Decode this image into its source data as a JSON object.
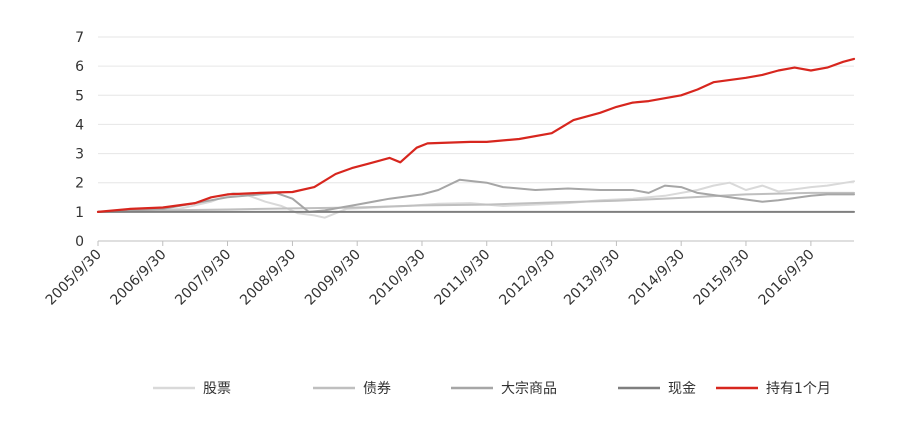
{
  "chart_data": {
    "type": "line",
    "title": "",
    "xlabel": "",
    "ylabel": "",
    "ylim": [
      0,
      7
    ],
    "yticks": [
      0,
      1,
      2,
      3,
      4,
      5,
      6,
      7
    ],
    "xlim": [
      "2005/9/30",
      "2017/5/31"
    ],
    "xticks": [
      "2005/9/30",
      "2006/9/30",
      "2007/9/30",
      "2008/9/30",
      "2009/9/30",
      "2010/9/30",
      "2011/9/30",
      "2012/9/30",
      "2013/9/30",
      "2014/9/30",
      "2015/9/30",
      "2016/9/30"
    ],
    "grid": "horizontal",
    "legend_position": "bottom",
    "series": [
      {
        "name": "股票",
        "color": "#d9d9d9",
        "points": [
          [
            "2005/9/30",
            1.0
          ],
          [
            "2006/1/31",
            1.0
          ],
          [
            "2006/6/30",
            1.03
          ],
          [
            "2006/12/31",
            1.1
          ],
          [
            "2007/6/30",
            1.35
          ],
          [
            "2007/10/31",
            1.65
          ],
          [
            "2008/1/31",
            1.55
          ],
          [
            "2008/4/30",
            1.35
          ],
          [
            "2008/7/31",
            1.2
          ],
          [
            "2008/10/31",
            0.95
          ],
          [
            "2009/1/31",
            0.88
          ],
          [
            "2009/3/31",
            0.8
          ],
          [
            "2009/7/31",
            1.1
          ],
          [
            "2009/12/31",
            1.15
          ],
          [
            "2010/6/30",
            1.2
          ],
          [
            "2010/12/31",
            1.28
          ],
          [
            "2011/6/30",
            1.3
          ],
          [
            "2011/12/31",
            1.2
          ],
          [
            "2012/6/30",
            1.25
          ],
          [
            "2012/12/31",
            1.3
          ],
          [
            "2013/6/30",
            1.4
          ],
          [
            "2013/12/31",
            1.45
          ],
          [
            "2014/6/30",
            1.55
          ],
          [
            "2014/12/31",
            1.75
          ],
          [
            "2015/3/31",
            1.9
          ],
          [
            "2015/6/30",
            2.0
          ],
          [
            "2015/9/30",
            1.75
          ],
          [
            "2015/12/31",
            1.9
          ],
          [
            "2016/3/31",
            1.7
          ],
          [
            "2016/9/30",
            1.85
          ],
          [
            "2016/12/31",
            1.9
          ],
          [
            "2017/5/31",
            2.05
          ]
        ]
      },
      {
        "name": "债券",
        "color": "#bfbfbf",
        "points": [
          [
            "2005/9/30",
            1.0
          ],
          [
            "2006/9/30",
            1.05
          ],
          [
            "2007/9/30",
            1.08
          ],
          [
            "2008/9/30",
            1.12
          ],
          [
            "2009/9/30",
            1.15
          ],
          [
            "2010/9/30",
            1.22
          ],
          [
            "2011/9/30",
            1.25
          ],
          [
            "2012/9/30",
            1.32
          ],
          [
            "2013/9/30",
            1.38
          ],
          [
            "2014/9/30",
            1.48
          ],
          [
            "2015/9/30",
            1.6
          ],
          [
            "2016/9/30",
            1.65
          ],
          [
            "2017/5/31",
            1.65
          ]
        ]
      },
      {
        "name": "大宗商品",
        "color": "#a6a6a6",
        "points": [
          [
            "2005/9/30",
            1.0
          ],
          [
            "2006/3/31",
            1.05
          ],
          [
            "2006/9/30",
            1.1
          ],
          [
            "2007/3/31",
            1.3
          ],
          [
            "2007/9/30",
            1.5
          ],
          [
            "2008/3/31",
            1.6
          ],
          [
            "2008/6/30",
            1.65
          ],
          [
            "2008/9/30",
            1.45
          ],
          [
            "2008/12/31",
            1.0
          ],
          [
            "2009/3/31",
            1.05
          ],
          [
            "2009/9/30",
            1.25
          ],
          [
            "2010/3/31",
            1.45
          ],
          [
            "2010/9/30",
            1.6
          ],
          [
            "2010/12/31",
            1.75
          ],
          [
            "2011/4/30",
            2.1
          ],
          [
            "2011/9/30",
            2.0
          ],
          [
            "2011/12/31",
            1.85
          ],
          [
            "2012/6/30",
            1.75
          ],
          [
            "2012/12/31",
            1.8
          ],
          [
            "2013/6/30",
            1.75
          ],
          [
            "2013/12/31",
            1.75
          ],
          [
            "2014/3/31",
            1.65
          ],
          [
            "2014/6/30",
            1.9
          ],
          [
            "2014/9/30",
            1.85
          ],
          [
            "2014/12/31",
            1.65
          ],
          [
            "2015/6/30",
            1.5
          ],
          [
            "2015/12/31",
            1.35
          ],
          [
            "2016/3/31",
            1.4
          ],
          [
            "2016/9/30",
            1.55
          ],
          [
            "2016/12/31",
            1.6
          ],
          [
            "2017/5/31",
            1.6
          ]
        ]
      },
      {
        "name": "现金",
        "color": "#7f7f7f",
        "points": [
          [
            "2005/9/30",
            1.0
          ],
          [
            "2017/5/31",
            1.0
          ]
        ]
      },
      {
        "name": "持有1个月",
        "color": "#d7261e",
        "points": [
          [
            "2005/9/30",
            1.0
          ],
          [
            "2006/3/31",
            1.1
          ],
          [
            "2006/9/30",
            1.15
          ],
          [
            "2007/3/31",
            1.3
          ],
          [
            "2007/6/30",
            1.5
          ],
          [
            "2007/9/30",
            1.6
          ],
          [
            "2008/3/31",
            1.65
          ],
          [
            "2008/9/30",
            1.68
          ],
          [
            "2009/1/31",
            1.85
          ],
          [
            "2009/5/31",
            2.3
          ],
          [
            "2009/8/31",
            2.5
          ],
          [
            "2009/11/30",
            2.65
          ],
          [
            "2010/3/31",
            2.85
          ],
          [
            "2010/5/31",
            2.7
          ],
          [
            "2010/8/31",
            3.2
          ],
          [
            "2010/10/31",
            3.35
          ],
          [
            "2011/6/30",
            3.4
          ],
          [
            "2011/9/30",
            3.4
          ],
          [
            "2012/3/31",
            3.5
          ],
          [
            "2012/9/30",
            3.7
          ],
          [
            "2013/1/31",
            4.15
          ],
          [
            "2013/6/30",
            4.4
          ],
          [
            "2013/9/30",
            4.6
          ],
          [
            "2013/12/31",
            4.75
          ],
          [
            "2014/3/31",
            4.8
          ],
          [
            "2014/9/30",
            5.0
          ],
          [
            "2014/12/31",
            5.2
          ],
          [
            "2015/3/31",
            5.45
          ],
          [
            "2015/9/30",
            5.6
          ],
          [
            "2015/12/31",
            5.7
          ],
          [
            "2016/3/31",
            5.85
          ],
          [
            "2016/6/30",
            5.95
          ],
          [
            "2016/9/30",
            5.85
          ],
          [
            "2016/12/31",
            5.95
          ],
          [
            "2017/3/31",
            6.15
          ],
          [
            "2017/5/31",
            6.25
          ]
        ]
      }
    ]
  }
}
